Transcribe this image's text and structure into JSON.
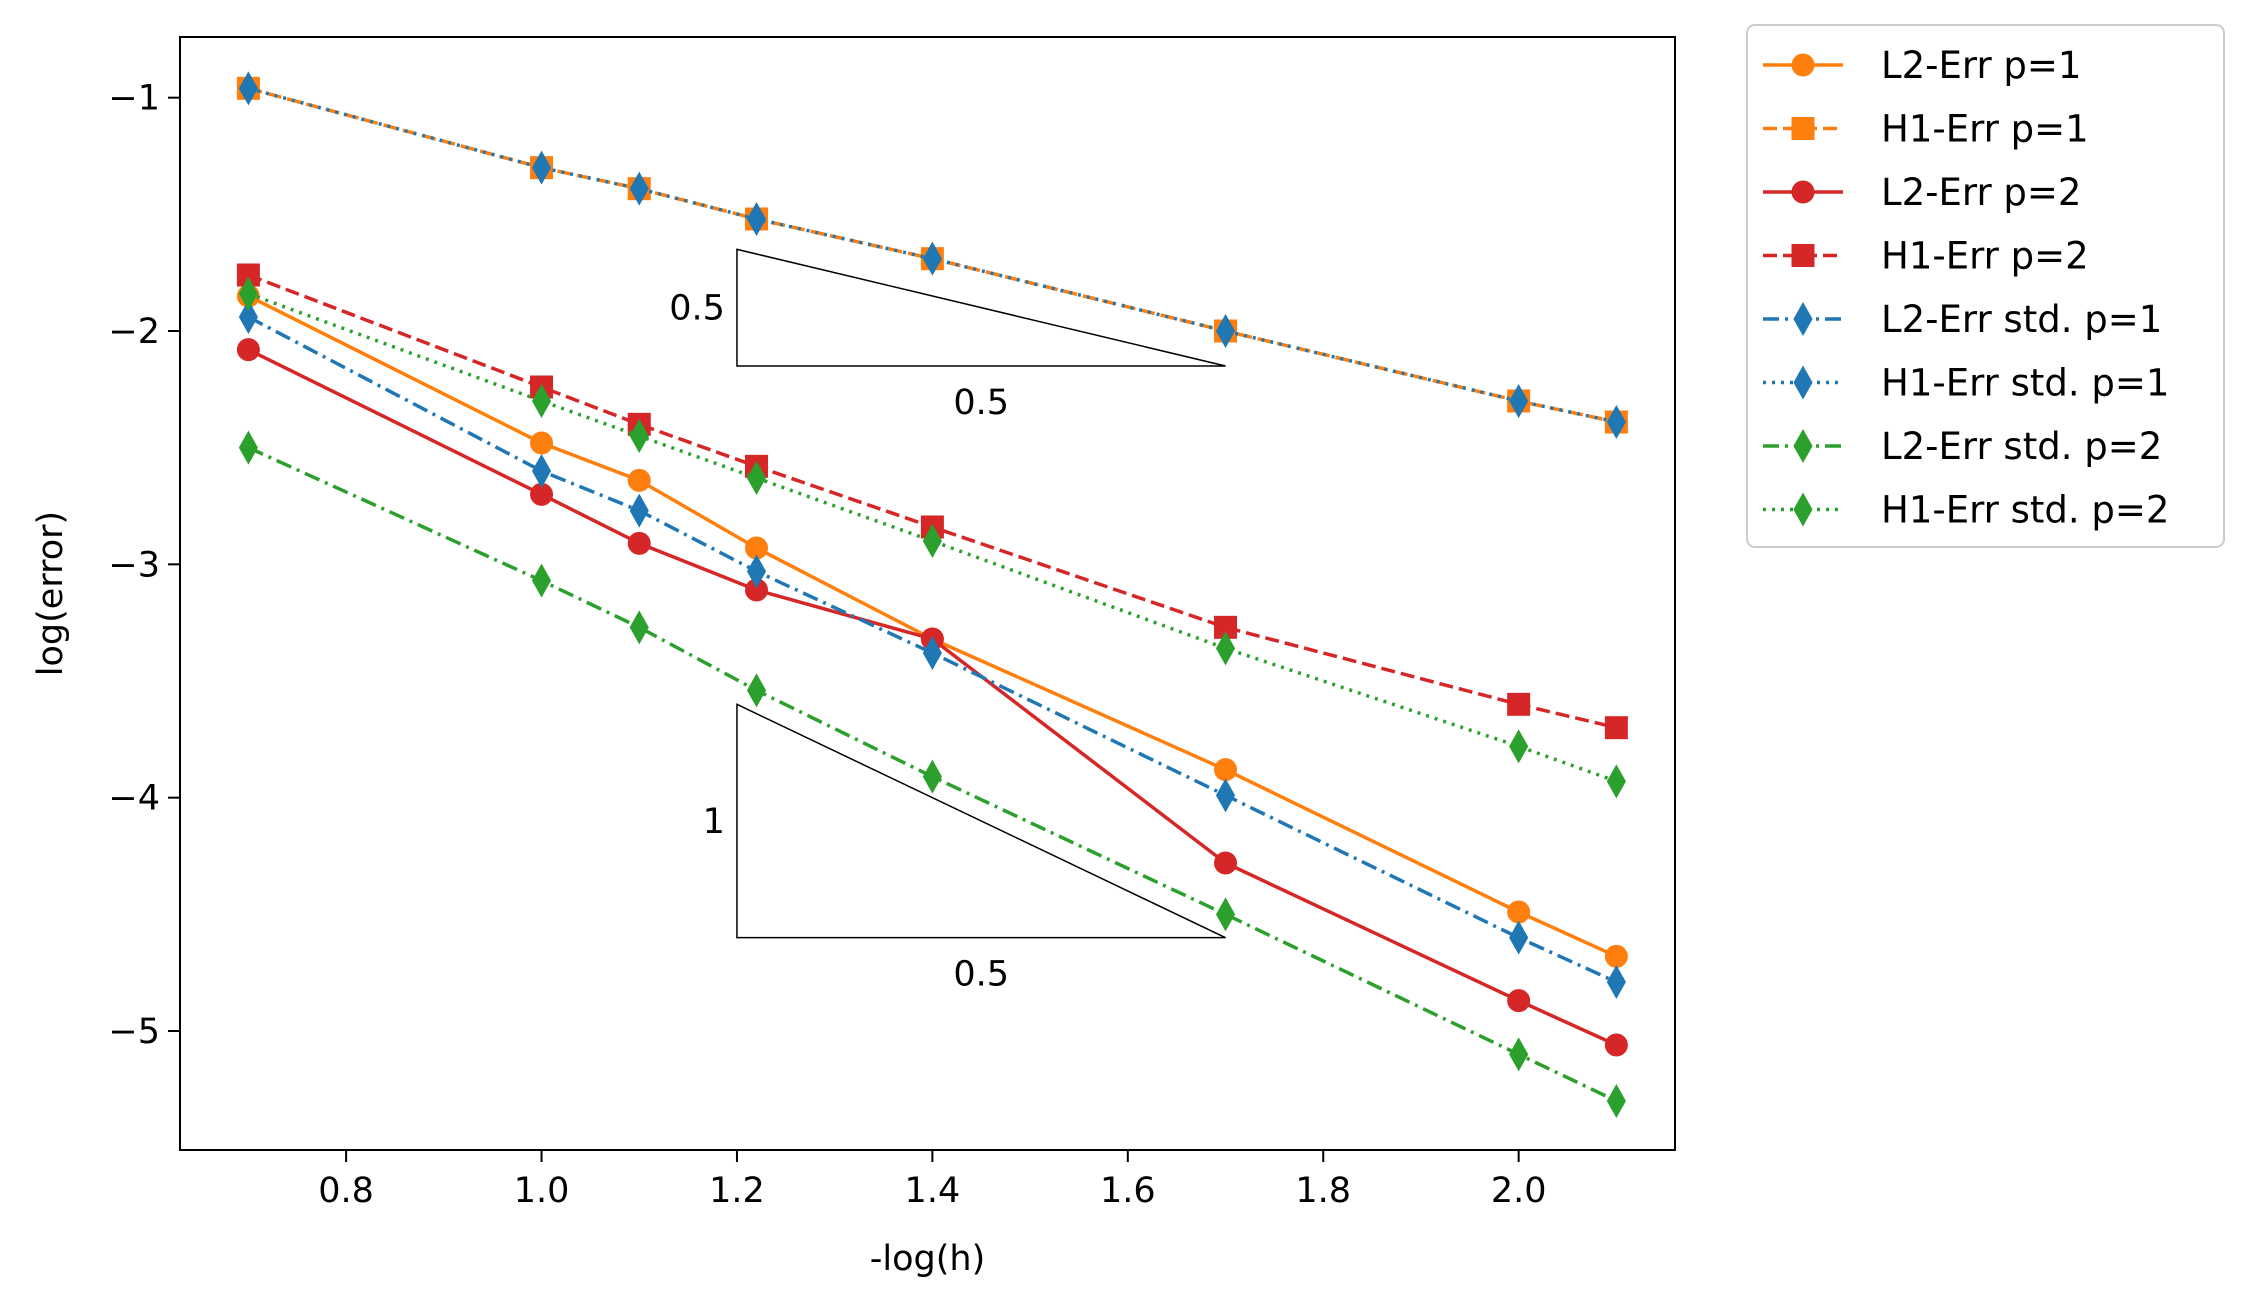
{
  "chart_data": {
    "type": "line",
    "title": "",
    "xlabel": "-log(h)",
    "ylabel": "log(error)",
    "xlim": [
      0.63,
      2.16
    ],
    "ylim": [
      -5.51,
      -0.74
    ],
    "xticks": [
      0.8,
      1.0,
      1.2,
      1.4,
      1.6,
      1.8,
      2.0
    ],
    "xtick_labels": [
      "0.8",
      "1.0",
      "1.2",
      "1.4",
      "1.6",
      "1.8",
      "2.0"
    ],
    "yticks": [
      -1,
      -2,
      -3,
      -4,
      -5
    ],
    "ytick_labels": [
      "−1",
      "−2",
      "−3",
      "−4",
      "−5"
    ],
    "grid": false,
    "legend_placement": "outside upper-right",
    "series": [
      {
        "name": "L2-Err p=1",
        "color": "#ff7f0e",
        "linestyle": "solid",
        "marker": "circle",
        "x": [
          0.7,
          1.0,
          1.1,
          1.22,
          1.4,
          1.7,
          2.0,
          2.1
        ],
        "y": [
          -1.85,
          -2.48,
          -2.64,
          -2.93,
          -3.32,
          -3.88,
          -4.49,
          -4.68
        ]
      },
      {
        "name": "H1-Err p=1",
        "color": "#ff7f0e",
        "linestyle": "dashed",
        "marker": "square",
        "x": [
          0.7,
          1.0,
          1.1,
          1.22,
          1.4,
          1.7,
          2.0,
          2.1
        ],
        "y": [
          -0.96,
          -1.3,
          -1.39,
          -1.52,
          -1.69,
          -2.0,
          -2.3,
          -2.39
        ]
      },
      {
        "name": "L2-Err p=2",
        "color": "#d62728",
        "linestyle": "solid",
        "marker": "circle",
        "x": [
          0.7,
          1.0,
          1.1,
          1.22,
          1.4,
          1.7,
          2.0,
          2.1
        ],
        "y": [
          -2.08,
          -2.7,
          -2.91,
          -3.11,
          -3.32,
          -4.28,
          -4.87,
          -5.06
        ]
      },
      {
        "name": "H1-Err p=2",
        "color": "#d62728",
        "linestyle": "dashed",
        "marker": "square",
        "x": [
          0.7,
          1.0,
          1.1,
          1.22,
          1.4,
          1.7,
          2.0,
          2.1
        ],
        "y": [
          -1.76,
          -2.24,
          -2.4,
          -2.58,
          -2.84,
          -3.27,
          -3.6,
          -3.7
        ]
      },
      {
        "name": "L2-Err std. p=1",
        "color": "#1f77b4",
        "linestyle": "dashdot",
        "marker": "thin_diamond",
        "x": [
          0.7,
          1.0,
          1.1,
          1.22,
          1.4,
          1.7,
          2.0,
          2.1
        ],
        "y": [
          -1.94,
          -2.6,
          -2.77,
          -3.03,
          -3.38,
          -3.99,
          -4.6,
          -4.79
        ]
      },
      {
        "name": "H1-Err std. p=1",
        "color": "#1f77b4",
        "linestyle": "dotted",
        "marker": "thin_diamond",
        "x": [
          0.7,
          1.0,
          1.1,
          1.22,
          1.4,
          1.7,
          2.0,
          2.1
        ],
        "y": [
          -0.96,
          -1.3,
          -1.39,
          -1.52,
          -1.69,
          -2.0,
          -2.3,
          -2.39
        ]
      },
      {
        "name": "L2-Err std. p=2",
        "color": "#2ca02c",
        "linestyle": "dashdot",
        "marker": "thin_diamond",
        "x": [
          0.7,
          1.0,
          1.1,
          1.22,
          1.4,
          1.7,
          2.0,
          2.1
        ],
        "y": [
          -2.5,
          -3.07,
          -3.27,
          -3.54,
          -3.91,
          -4.5,
          -5.1,
          -5.3
        ]
      },
      {
        "name": "H1-Err std. p=2",
        "color": "#2ca02c",
        "linestyle": "dotted",
        "marker": "thin_diamond",
        "x": [
          0.7,
          1.0,
          1.1,
          1.22,
          1.4,
          1.7,
          2.0,
          2.1
        ],
        "y": [
          -1.84,
          -2.3,
          -2.45,
          -2.63,
          -2.9,
          -3.36,
          -3.78,
          -3.93
        ]
      }
    ],
    "annotations": [
      {
        "type": "slope_triangle",
        "vertices": [
          [
            1.2,
            -1.65
          ],
          [
            1.2,
            -2.15
          ],
          [
            1.7,
            -2.15
          ]
        ],
        "vertical_label": "0.5",
        "horizontal_label": "0.5"
      },
      {
        "type": "slope_triangle",
        "vertices": [
          [
            1.2,
            -3.6
          ],
          [
            1.2,
            -4.6
          ],
          [
            1.7,
            -4.6
          ]
        ],
        "vertical_label": "1",
        "horizontal_label": "0.5"
      }
    ]
  }
}
